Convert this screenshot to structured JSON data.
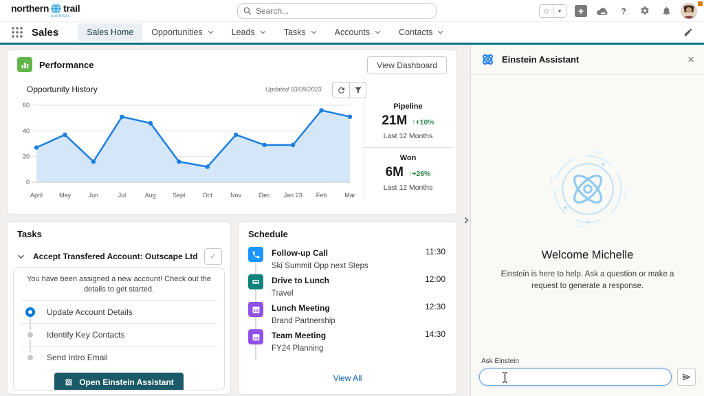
{
  "header": {
    "logo": {
      "word1": "northern",
      "word2": "trail",
      "subtitle": "outfitters"
    },
    "search": {
      "placeholder": "Search..."
    },
    "icons": [
      "favorites-star",
      "favorites-dropdown",
      "global-actions",
      "guidance-center",
      "help",
      "setup",
      "notifications",
      "profile-avatar"
    ]
  },
  "glyphs": {
    "star": "☆",
    "dropdown": "▾",
    "plus": "+",
    "help": "?",
    "close": "×",
    "check": "✓",
    "up_arrow": "↑"
  },
  "nav": {
    "app_name": "Sales",
    "tabs": [
      {
        "label": "Sales Home",
        "active": true,
        "dropdown": false
      },
      {
        "label": "Opportunities",
        "active": false,
        "dropdown": true
      },
      {
        "label": "Leads",
        "active": false,
        "dropdown": true
      },
      {
        "label": "Tasks",
        "active": false,
        "dropdown": true
      },
      {
        "label": "Accounts",
        "active": false,
        "dropdown": true
      },
      {
        "label": "Contacts",
        "active": false,
        "dropdown": true
      }
    ]
  },
  "performance": {
    "title": "Performance",
    "view_dashboard_label": "View Dashboard",
    "chart_title": "Opportunity History",
    "updated": "Updated 03/09/2023",
    "stats": [
      {
        "label": "Pipeline",
        "value": "21M",
        "delta": "+10%",
        "period": "Last 12 Months"
      },
      {
        "label": "Won",
        "value": "6M",
        "delta": "+26%",
        "period": "Last 12 Months"
      }
    ]
  },
  "chart_data": {
    "type": "area",
    "title": "Opportunity History",
    "categories": [
      "April",
      "May",
      "Jun",
      "Jul",
      "Aug",
      "Sept",
      "Oct",
      "Nov",
      "Dec",
      "Jan 23",
      "Feb",
      "Mar"
    ],
    "values": [
      27,
      37,
      16,
      51,
      46,
      16,
      12,
      37,
      29,
      29,
      56,
      51
    ],
    "xlabel": "",
    "ylabel": "",
    "ylim": [
      0,
      60
    ],
    "yticks": [
      0,
      20,
      40,
      60
    ],
    "grid": true,
    "legend": false,
    "line_color": "#1b7fe0",
    "fill_color": "#cfe3f7"
  },
  "tasks": {
    "title": "Tasks",
    "task": {
      "title": "Accept Transfered Account: Outscape Ltd",
      "description": "You have been assigned a new account! Check out the details to get started.",
      "steps": [
        {
          "label": "Update Account Details",
          "state": "active"
        },
        {
          "label": "Identify Key Contacts",
          "state": "pending"
        },
        {
          "label": "Send Intro Email",
          "state": "pending"
        }
      ],
      "button_label": "Open Einstein Assistant"
    }
  },
  "schedule": {
    "title": "Schedule",
    "events": [
      {
        "title": "Follow-up Call",
        "subtitle": "Ski Summit Opp next Steps",
        "time": "11:30",
        "icon": "phone",
        "color": "#1b96ff"
      },
      {
        "title": "Drive to Lunch",
        "subtitle": "Travel",
        "time": "12:00",
        "icon": "car",
        "color": "#0b827c"
      },
      {
        "title": "Lunch Meeting",
        "subtitle": "Brand Partnership",
        "time": "12:30",
        "icon": "calendar",
        "color": "#9050e9"
      },
      {
        "title": "Team Meeting",
        "subtitle": "FY24 Planning",
        "time": "14:30",
        "icon": "calendar",
        "color": "#9050e9"
      }
    ],
    "view_all_label": "View All"
  },
  "assistant": {
    "title": "Einstein Assistant",
    "welcome": "Welcome Michelle",
    "description": "Einstein is here to help. Ask a question or make a request to generate a response.",
    "input_label": "Ask Einstein",
    "input_value": ""
  },
  "colors": {
    "nav_accent": "#0c7280",
    "link": "#0b5cab",
    "positive_delta": "#2e844a",
    "performance_icon": "#62b54a",
    "einstein_blue": "#1b7fe8",
    "task_button": "#1b5a68",
    "notification_dot": "#dd7a01"
  }
}
